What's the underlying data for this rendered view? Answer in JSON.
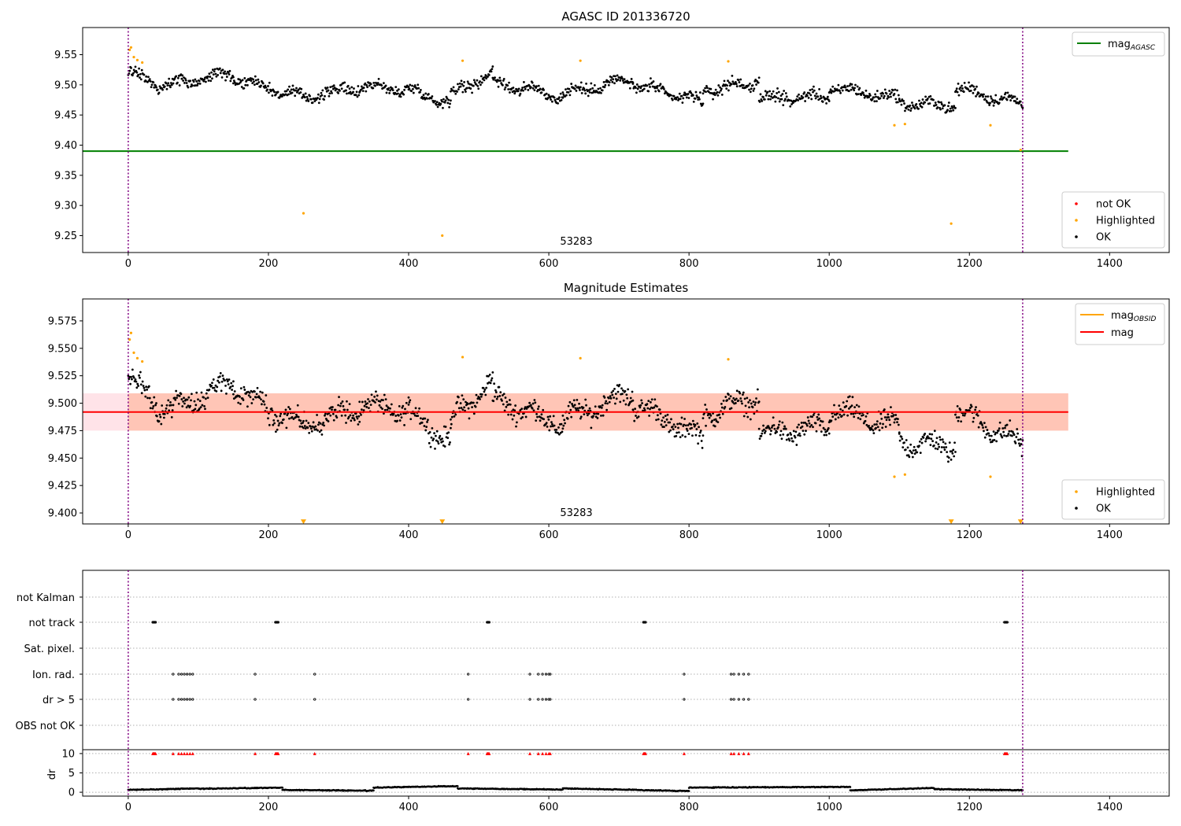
{
  "colors": {
    "ok": "#000000",
    "highlighted": "#ffa500",
    "not_ok": "#ff0000",
    "mag_agasc": "#008000",
    "mag_obsid": "#ffa500",
    "mag": "#ff0000",
    "band_outer": "#ffc0cb",
    "band_inner": "#ffa07a",
    "vline": "#800080",
    "grid": "#b0b0b0"
  },
  "chart_data": [
    {
      "type": "scatter",
      "title": "AGASC ID 201336720",
      "annotation": "53283",
      "xlim": [
        -65,
        1485
      ],
      "ylim": [
        9.222,
        9.595
      ],
      "x_ticks": [
        0,
        200,
        400,
        600,
        800,
        1000,
        1200,
        1400
      ],
      "y_ticks": [
        9.25,
        9.3,
        9.35,
        9.4,
        9.45,
        9.5,
        9.55
      ],
      "y_tick_labels": [
        "9.25",
        "9.30",
        "9.35",
        "9.40",
        "9.45",
        "9.50",
        "9.55"
      ],
      "vlines": [
        0,
        1276
      ],
      "hline": {
        "label": "mag_{AGASC}",
        "value": 9.39,
        "x_range": [
          -65,
          1341
        ]
      },
      "legend_lines": [
        {
          "label": "mag",
          "sub": "AGASC",
          "color_key": "mag_agasc"
        }
      ],
      "legend_points": [
        {
          "label": "not OK",
          "color_key": "not_ok"
        },
        {
          "label": "Highlighted",
          "color_key": "highlighted"
        },
        {
          "label": "OK",
          "color_key": "ok"
        }
      ],
      "series": [
        {
          "name": "OK",
          "segments": [
            {
              "x": [
                0,
                40
              ],
              "y": [
                9.521,
                9.503
              ]
            },
            {
              "x": [
                40,
                150
              ],
              "y": [
                9.498,
                9.518
              ]
            },
            {
              "x": [
                150,
                250
              ],
              "y": [
                9.512,
                9.478
              ]
            },
            {
              "x": [
                250,
                330
              ],
              "y": [
                9.48,
                9.495
              ]
            },
            {
              "x": [
                330,
                400
              ],
              "y": [
                9.498,
                9.492
              ]
            },
            {
              "x": [
                400,
                460
              ],
              "y": [
                9.492,
                9.47
              ]
            },
            {
              "x": [
                460,
                520
              ],
              "y": [
                9.485,
                9.52
              ]
            },
            {
              "x": [
                520,
                620
              ],
              "y": [
                9.505,
                9.48
              ]
            },
            {
              "x": [
                620,
                720
              ],
              "y": [
                9.485,
                9.51
              ]
            },
            {
              "x": [
                720,
                820
              ],
              "y": [
                9.5,
                9.472
              ]
            },
            {
              "x": [
                820,
                900
              ],
              "y": [
                9.49,
                9.505
              ]
            },
            {
              "x": [
                900,
                1000
              ],
              "y": [
                9.478,
                9.48
              ]
            },
            {
              "x": [
                1000,
                1100
              ],
              "y": [
                9.495,
                9.478
              ]
            },
            {
              "x": [
                1100,
                1180
              ],
              "y": [
                9.47,
                9.465
              ]
            },
            {
              "x": [
                1180,
                1276
              ],
              "y": [
                9.495,
                9.468
              ]
            }
          ]
        },
        {
          "name": "Highlighted",
          "x": [
            2,
            4,
            8,
            13,
            20,
            250,
            448,
            477,
            645,
            856,
            1093,
            1108,
            1174,
            1230,
            1273
          ],
          "y": [
            9.558,
            9.562,
            9.546,
            9.541,
            9.537,
            9.287,
            9.25,
            9.54,
            9.54,
            9.539,
            9.433,
            9.435,
            9.27,
            9.433,
            9.392
          ]
        }
      ]
    },
    {
      "type": "scatter",
      "title": "Magnitude Estimates",
      "annotation": "53283",
      "xlim": [
        -65,
        1485
      ],
      "ylim": [
        9.39,
        9.595
      ],
      "x_ticks": [
        0,
        200,
        400,
        600,
        800,
        1000,
        1200,
        1400
      ],
      "y_ticks": [
        9.4,
        9.425,
        9.45,
        9.475,
        9.5,
        9.525,
        9.55,
        9.575
      ],
      "y_tick_labels": [
        "9.400",
        "9.425",
        "9.450",
        "9.475",
        "9.500",
        "9.525",
        "9.550",
        "9.575"
      ],
      "vlines": [
        0,
        1276
      ],
      "mag_line": {
        "value": 9.492,
        "x_range": [
          -65,
          1341
        ]
      },
      "band_outer": [
        9.475,
        9.509
      ],
      "band_inner": [
        9.475,
        9.509
      ],
      "band_inner_x": [
        0,
        1341
      ],
      "legend_lines": [
        {
          "label": "mag",
          "sub": "OBSID",
          "color_key": "mag_obsid"
        },
        {
          "label": "mag",
          "sub": "",
          "color_key": "mag"
        }
      ],
      "legend_points": [
        {
          "label": "Highlighted",
          "color_key": "highlighted"
        },
        {
          "label": "OK",
          "color_key": "ok"
        }
      ],
      "series": [
        {
          "name": "OK",
          "segments": [
            {
              "x": [
                0,
                40
              ],
              "y": [
                9.521,
                9.503
              ]
            },
            {
              "x": [
                40,
                150
              ],
              "y": [
                9.49,
                9.518
              ]
            },
            {
              "x": [
                150,
                250
              ],
              "y": [
                9.512,
                9.478
              ]
            },
            {
              "x": [
                250,
                330
              ],
              "y": [
                9.48,
                9.495
              ]
            },
            {
              "x": [
                330,
                400
              ],
              "y": [
                9.498,
                9.492
              ]
            },
            {
              "x": [
                400,
                460
              ],
              "y": [
                9.492,
                9.465
              ]
            },
            {
              "x": [
                460,
                520
              ],
              "y": [
                9.485,
                9.52
              ]
            },
            {
              "x": [
                520,
                620
              ],
              "y": [
                9.505,
                9.48
              ]
            },
            {
              "x": [
                620,
                720
              ],
              "y": [
                9.485,
                9.51
              ]
            },
            {
              "x": [
                720,
                820
              ],
              "y": [
                9.5,
                9.468
              ]
            },
            {
              "x": [
                820,
                900
              ],
              "y": [
                9.49,
                9.505
              ]
            },
            {
              "x": [
                900,
                1000
              ],
              "y": [
                9.472,
                9.478
              ]
            },
            {
              "x": [
                1000,
                1100
              ],
              "y": [
                9.495,
                9.478
              ]
            },
            {
              "x": [
                1100,
                1180
              ],
              "y": [
                9.465,
                9.46
              ]
            },
            {
              "x": [
                1180,
                1276
              ],
              "y": [
                9.495,
                9.462
              ]
            }
          ]
        },
        {
          "name": "Highlighted",
          "x": [
            2,
            4,
            8,
            13,
            20,
            477,
            645,
            856,
            1093,
            1108,
            1230
          ],
          "y": [
            9.558,
            9.564,
            9.546,
            9.541,
            9.538,
            9.542,
            9.541,
            9.54,
            9.433,
            9.435,
            9.433
          ]
        },
        {
          "name": "Highlighted (off scale)",
          "marker": "triangle-down",
          "x": [
            250,
            448,
            1174,
            1273
          ],
          "y": [
            9.392,
            9.392,
            9.392,
            9.392
          ]
        }
      ]
    },
    {
      "type": "scatter",
      "title": "",
      "xlim": [
        -65,
        1485
      ],
      "x_ticks": [
        0,
        200,
        400,
        600,
        800,
        1000,
        1200,
        1400
      ],
      "vlines": [
        0,
        1276
      ],
      "flag_rows": [
        "not Kalman",
        "not track",
        "Sat. pixel.",
        "Ion. rad.",
        "dr > 5",
        "OBS not OK"
      ],
      "flags": {
        "not track": [
          35,
          36,
          37,
          38,
          39,
          210,
          211,
          212,
          213,
          214,
          512,
          513,
          514,
          515,
          735,
          736,
          737,
          738,
          1250,
          1251,
          1252,
          1253,
          1254
        ],
        "Ion. rad.": [
          64,
          72,
          76,
          80,
          84,
          88,
          92,
          181,
          266,
          485,
          573,
          585,
          591,
          596,
          600,
          602,
          793,
          860,
          864,
          871,
          878,
          885
        ],
        "dr > 5": [
          64,
          72,
          76,
          80,
          84,
          88,
          92,
          181,
          266,
          485,
          573,
          585,
          591,
          596,
          600,
          602,
          793,
          860,
          864,
          871,
          878,
          885
        ]
      },
      "dr": {
        "ylabel": "dr",
        "ylim": [
          -1,
          11
        ],
        "y_ticks": [
          0,
          5,
          10
        ],
        "y_tick_labels": [
          "0",
          "5",
          "10"
        ],
        "baseline": [
          {
            "x": [
              0,
              100
            ],
            "y": [
              0.6,
              1.0
            ]
          },
          {
            "x": [
              100,
              220
            ],
            "y": [
              0.9,
              1.2
            ]
          },
          {
            "x": [
              220,
              350
            ],
            "y": [
              0.6,
              0.4
            ]
          },
          {
            "x": [
              350,
              470
            ],
            "y": [
              1.2,
              1.6
            ]
          },
          {
            "x": [
              470,
              620
            ],
            "y": [
              1.0,
              0.7
            ]
          },
          {
            "x": [
              620,
              800
            ],
            "y": [
              1.0,
              0.3
            ]
          },
          {
            "x": [
              800,
              1030
            ],
            "y": [
              1.2,
              1.4
            ]
          },
          {
            "x": [
              1030,
              1150
            ],
            "y": [
              0.5,
              1.1
            ]
          },
          {
            "x": [
              1150,
              1276
            ],
            "y": [
              0.8,
              0.5
            ]
          }
        ],
        "red_markers_y": 10
      }
    }
  ]
}
